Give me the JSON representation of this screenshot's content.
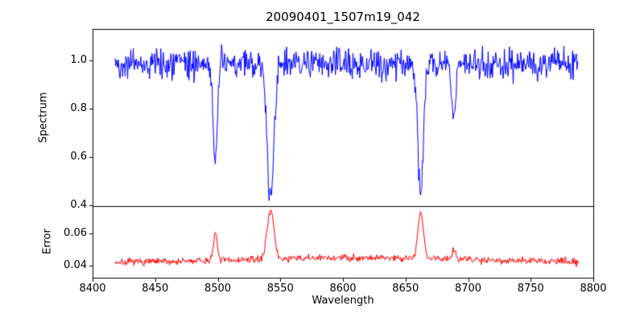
{
  "figure": {
    "background": "#ffffff",
    "axes_edge_color": "#000000"
  },
  "chart_data": {
    "type": "line",
    "title": "20090401_1507m19_042",
    "xlabel": "Wavelength",
    "x_axis_lim": [
      8400,
      8800
    ],
    "x_range": [
      8418,
      8788
    ],
    "sampling_step": 0.5,
    "grid": false,
    "legend": "none",
    "x_ticks": [
      {
        "value": 8400,
        "label": "8400"
      },
      {
        "value": 8450,
        "label": "8450"
      },
      {
        "value": 8500,
        "label": "8500"
      },
      {
        "value": 8550,
        "label": "8550"
      },
      {
        "value": 8600,
        "label": "8600"
      },
      {
        "value": 8650,
        "label": "8650"
      },
      {
        "value": 8700,
        "label": "8700"
      },
      {
        "value": 8750,
        "label": "8750"
      },
      {
        "value": 8800,
        "label": "8800"
      }
    ],
    "panels": [
      {
        "name": "spectrum",
        "ylabel": "Spectrum",
        "color": "#0000ff",
        "ylim": [
          0.397,
          1.13
        ],
        "y_ticks": [
          {
            "value": 0.4,
            "label": "0.4"
          },
          {
            "value": 0.6,
            "label": "0.6"
          },
          {
            "value": 0.8,
            "label": "0.8"
          },
          {
            "value": 1.0,
            "label": "1.0"
          }
        ],
        "baseline": 0.985,
        "noise_amplitude": 0.03,
        "seed": 42,
        "absorption_lines": [
          {
            "center": 8498.0,
            "depth": 0.4,
            "width": 1.7,
            "min_value": 0.58
          },
          {
            "center": 8542.1,
            "depth": 0.55,
            "width": 2.7,
            "min_value": 0.44
          },
          {
            "center": 8662.1,
            "depth": 0.53,
            "width": 2.2,
            "min_value": 0.46
          },
          {
            "center": 8688.6,
            "depth": 0.21,
            "width": 1.6,
            "min_value": 0.78
          }
        ]
      },
      {
        "name": "error",
        "ylabel": "Error",
        "color": "#ff0000",
        "ylim": [
          0.0325,
          0.077
        ],
        "y_ticks": [
          {
            "value": 0.04,
            "label": "0.04"
          },
          {
            "value": 0.06,
            "label": "0.06"
          }
        ],
        "baseline": 0.042,
        "hump": {
          "center": 8620,
          "width": 85,
          "height": 0.003
        },
        "noise_amplitude": 0.0011,
        "seed": 7,
        "emission_lines": [
          {
            "center": 8498.0,
            "height": 0.016,
            "width": 1.7,
            "peak_value": 0.058
          },
          {
            "center": 8542.1,
            "height": 0.031,
            "width": 2.7,
            "peak_value": 0.075
          },
          {
            "center": 8662.1,
            "height": 0.028,
            "width": 2.2,
            "peak_value": 0.072
          },
          {
            "center": 8688.6,
            "height": 0.006,
            "width": 1.6,
            "peak_value": 0.05
          }
        ]
      }
    ]
  }
}
